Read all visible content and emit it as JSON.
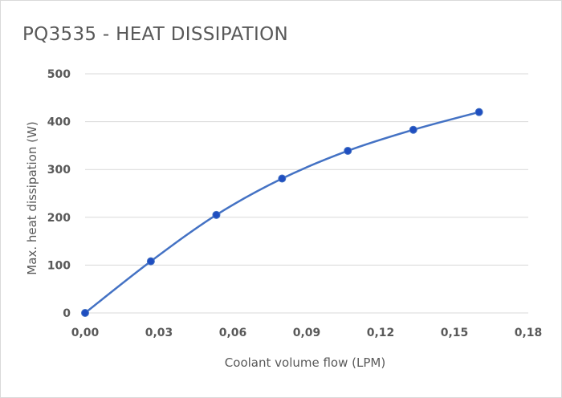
{
  "chart_data": {
    "type": "line",
    "title": "PQ3535 - HEAT DISSIPATION",
    "xlabel": "Coolant volume flow (LPM)",
    "ylabel": "Max. heat dissipation (W)",
    "xlim": [
      0,
      0.18
    ],
    "ylim": [
      0,
      500
    ],
    "x_ticks": [
      "0,00",
      "0,03",
      "0,06",
      "0,09",
      "0,12",
      "0,15",
      "0,18"
    ],
    "y_ticks": [
      "0",
      "100",
      "200",
      "300",
      "400",
      "500"
    ],
    "grid": true,
    "legend": "none",
    "series": [
      {
        "color": "#4472c4",
        "marker_color": "#1f4ec0",
        "smooth": true,
        "points": [
          {
            "x": 0.0,
            "y": 0
          },
          {
            "x": 0.0267,
            "y": 108
          },
          {
            "x": 0.0533,
            "y": 205
          },
          {
            "x": 0.08,
            "y": 281
          },
          {
            "x": 0.1067,
            "y": 339
          },
          {
            "x": 0.1333,
            "y": 383
          },
          {
            "x": 0.16,
            "y": 420
          }
        ]
      }
    ]
  }
}
